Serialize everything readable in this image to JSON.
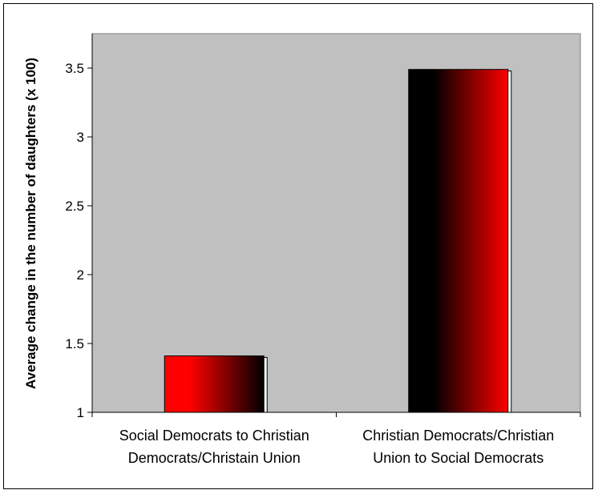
{
  "chart_data": {
    "type": "bar",
    "title": "",
    "xlabel": "",
    "ylabel": "Average change in the number of daughters (x 100)",
    "ylim": [
      1,
      3.75
    ],
    "yticks": [
      1,
      1.5,
      2,
      2.5,
      3,
      3.5
    ],
    "ytick_labels": [
      "1",
      "1.5",
      "2",
      "2.5",
      "3",
      "3.5"
    ],
    "categories": [
      [
        "Social Democrats to Christian",
        "Democrats/Christain Union"
      ],
      [
        "Christian Democrats/Christian",
        "Union to Social Democrats"
      ]
    ],
    "values": [
      1.41,
      3.49
    ],
    "grid": false,
    "legend": "none",
    "colors": {
      "plot_background": "#c0c0c0",
      "bar_light": "#ff0000",
      "bar_dark": "#000000",
      "axis": "#000000",
      "frame": "#000000"
    }
  }
}
